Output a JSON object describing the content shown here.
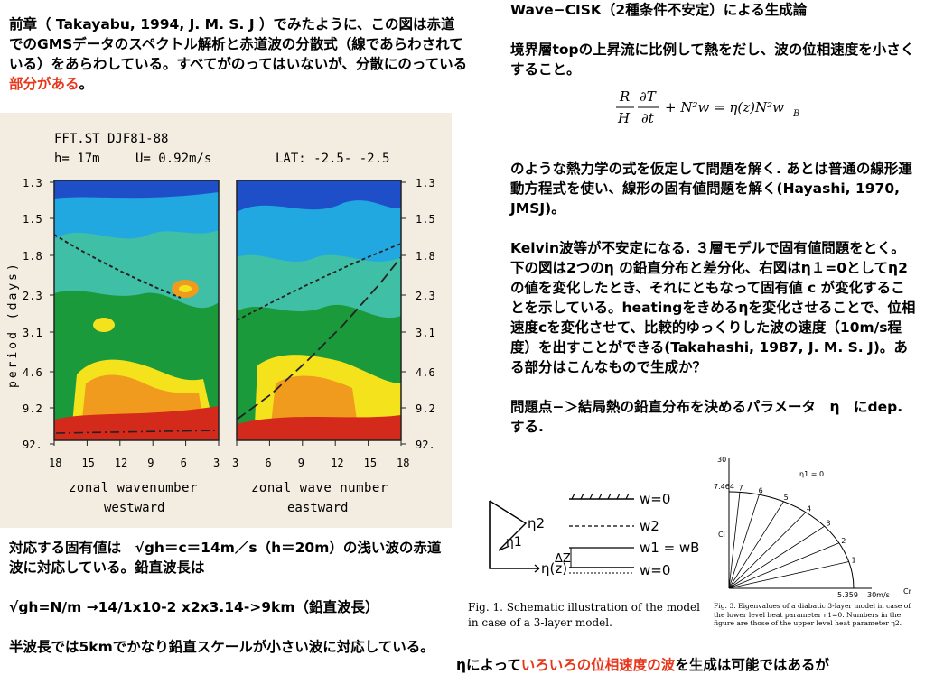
{
  "left_intro": {
    "text": "前章（ Takayabu, 1994, J. M. S. J ）でみたように、この図は赤道でのGMSデータのスペクトル解析と赤道波の分散式（線であらわされている）をあらわしている。すべてがのってはいないが、分散にのっている",
    "highlight": "部分がある",
    "end": "。"
  },
  "left_bottom": {
    "line1": "対応する固有値は　√gh＝c＝14m／s（h＝20m）の浅い波の赤道波に対応している。鉛直波長は",
    "line2": "√gh=N/m →14/1x10-2 x2x3.14->9km（鉛直波長）",
    "line3": "半波長では5kmでかなり鉛直スケールが小さい波に対応している。"
  },
  "right_col": {
    "title": "Wave−CISK（2種条件不安定）による生成論",
    "p1": "境界層topの上昇流に比例して熱をだし、波の位相速度を小さくすること。",
    "p2": "のような熱力学の式を仮定して問題を解く. あとは普通の線形運動方程式を使い、線形の固有値問題を解く(Hayashi, 1970, JMSJ)。",
    "p3": "Kelvin波等が不安定になる. ３層モデルで固有値問題をとく。下の図は2つのη の鉛直分布と差分化、右図はη１=0としてη2の値を変化したとき、それにともなって固有値 c が変化することを示している。heatingをきめるηを変化させることで、位相速度cを変化させて、比較的ゆっくりした波の速度（10m/s程度）を出すことができる(Takahashi, 1987, J. M. S. J)。ある部分はこんなもので生成か？",
    "p4": "問題点−＞結局熱の鉛直分布を決めるパラメータ　η　にdep. する."
  },
  "bottom_note": {
    "pre": "ηによって",
    "highlight": "いろいろの位相速度の波",
    "post": "を生成は可能ではあるが"
  },
  "formula": {
    "r": "R",
    "h": "H",
    "partial_t_num": "∂T",
    "partial_t_den": "∂t",
    "rest": "+ N²w = η(z)N²w",
    "sub": "B"
  },
  "chart_data": [
    {
      "type": "heatmap",
      "header_line1": "FFT.ST DJF81-88",
      "header_h": "h= 17m",
      "header_u": "U= 0.92m/s",
      "header_lat": "LAT: -2.5- -2.5",
      "ylabel": "period (days)",
      "yticks": [
        "1.3",
        "1.5",
        "1.8",
        "2.3",
        "3.1",
        "4.6",
        "9.2",
        "92."
      ],
      "panels": [
        {
          "name": "westward",
          "xlabel_1": "zonal wavenumber",
          "xlabel_2": "westward",
          "xticks": [
            "18",
            "15",
            "12",
            "9",
            "6",
            "3"
          ]
        },
        {
          "name": "eastward",
          "xlabel_1": "zonal wave number",
          "xlabel_2": "eastward",
          "xticks": [
            "3",
            "6",
            "9",
            "12",
            "15",
            "18"
          ]
        }
      ],
      "colors": {
        "blue": "#1f4fc8",
        "cyan": "#21a8e0",
        "teal": "#3fbfa6",
        "green": "#1a9a3a",
        "yellow": "#f4e21c",
        "orange": "#f09a1e",
        "red": "#d42a1c",
        "paper": "#f3ece0"
      }
    },
    {
      "type": "line",
      "title": "Fig. 1.  Schematic illustration of the model in case of a 3-layer model.",
      "labels": {
        "eta2": "η2",
        "eta1": "η1",
        "eta_z": "η(z)",
        "dz": "ΔZ",
        "w0_top": "w=0",
        "w2": "w2",
        "w1": "w1 = wB",
        "w0_bot": "w=0"
      }
    },
    {
      "type": "line",
      "title": "Fig. 3.  Eigenvalues of a diabatic 3-layer model in case of the lower level heat parameter η1=0. Numbers in the figure are those of the upper level heat parameter η2.",
      "y_axis_label": "Ci",
      "x_axis_label": "Cr",
      "y_top": "30",
      "y_mark": "7.464",
      "x_mark": "5.359",
      "x_end": "30m/s",
      "eta_label": "η1 = 0",
      "series_labels": [
        "1",
        "2",
        "3",
        "4",
        "5",
        "6",
        "7"
      ],
      "series_angles_deg": [
        16,
        28,
        40,
        52,
        64,
        76,
        85
      ]
    }
  ]
}
